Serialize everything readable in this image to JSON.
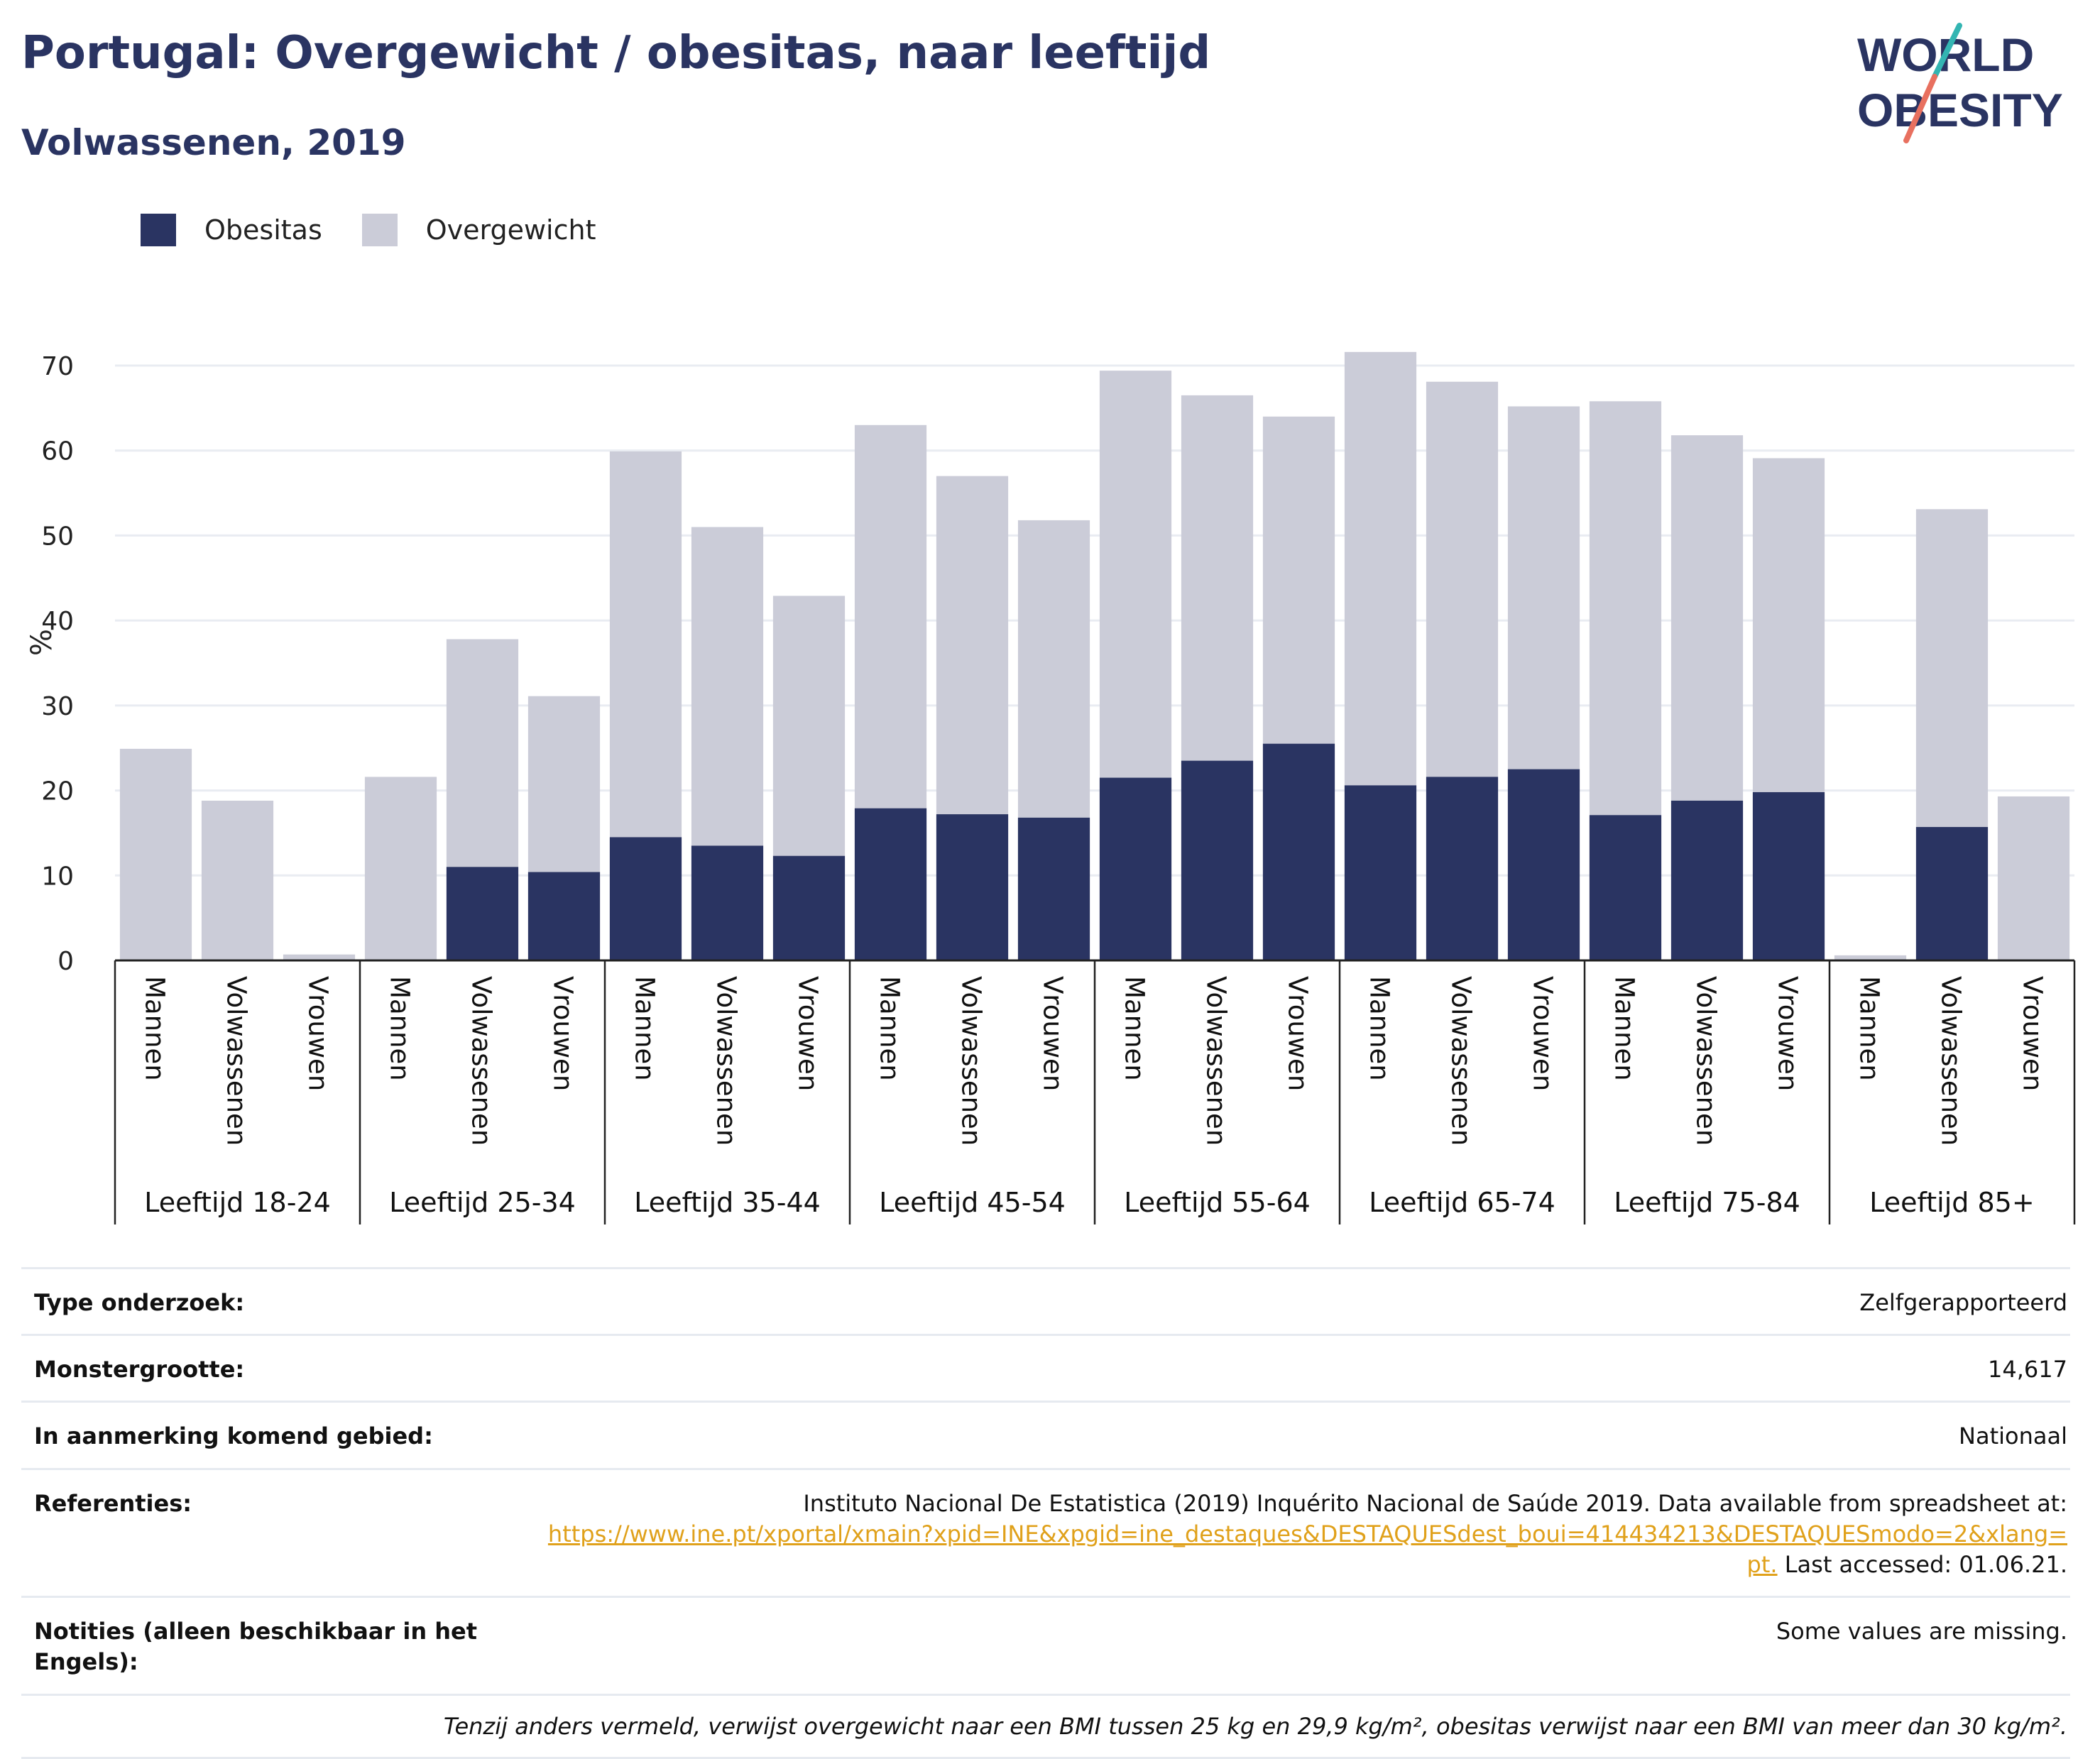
{
  "title": "Portugal: Overgewicht / obesitas, naar leeftijd",
  "subtitle": "Volwassenen, 2019",
  "logo": {
    "line1": "WORLD",
    "line2": "OBESITY",
    "slash_colors": [
      "#e8705f",
      "#33b5b2"
    ]
  },
  "colors": {
    "obesity": "#2a3462",
    "overweight": "#cbccd8",
    "title": "#2a3462",
    "link": "#e0a11b"
  },
  "legend": [
    {
      "label": "Obesitas",
      "color": "#2a3462"
    },
    {
      "label": "Overgewicht",
      "color": "#cbccd8"
    }
  ],
  "chart_data": {
    "type": "bar",
    "stacked": false,
    "overlay": true,
    "ylabel": "%",
    "ylim": [
      0,
      70
    ],
    "yticks": [
      0,
      10,
      20,
      30,
      40,
      50,
      60,
      70
    ],
    "grid": true,
    "legend_position": "top-left",
    "groups": [
      {
        "label": "Leeftijd 18-24",
        "categories": [
          "Mannen",
          "Volwassenen",
          "Vrouwen"
        ],
        "overweight": [
          24.9,
          18.8,
          0.7
        ],
        "obesity": [
          null,
          null,
          null
        ]
      },
      {
        "label": "Leeftijd 25-34",
        "categories": [
          "Mannen",
          "Volwassenen",
          "Vrouwen"
        ],
        "overweight": [
          21.6,
          37.8,
          31.1
        ],
        "obesity": [
          null,
          11.0,
          10.4
        ]
      },
      {
        "label": "Leeftijd 35-44",
        "categories": [
          "Mannen",
          "Volwassenen",
          "Vrouwen"
        ],
        "overweight": [
          59.9,
          51.0,
          42.9
        ],
        "obesity": [
          14.5,
          13.5,
          12.3
        ]
      },
      {
        "label": "Leeftijd 45-54",
        "categories": [
          "Mannen",
          "Volwassenen",
          "Vrouwen"
        ],
        "overweight": [
          63.0,
          57.0,
          51.8
        ],
        "obesity": [
          17.9,
          17.2,
          16.8
        ]
      },
      {
        "label": "Leeftijd 55-64",
        "categories": [
          "Mannen",
          "Volwassenen",
          "Vrouwen"
        ],
        "overweight": [
          69.4,
          66.5,
          64.0
        ],
        "obesity": [
          21.5,
          23.5,
          25.5
        ]
      },
      {
        "label": "Leeftijd 65-74",
        "categories": [
          "Mannen",
          "Volwassenen",
          "Vrouwen"
        ],
        "overweight": [
          71.6,
          68.1,
          65.2
        ],
        "obesity": [
          20.6,
          21.6,
          22.5
        ]
      },
      {
        "label": "Leeftijd 75-84",
        "categories": [
          "Mannen",
          "Volwassenen",
          "Vrouwen"
        ],
        "overweight": [
          65.8,
          61.8,
          59.1
        ],
        "obesity": [
          17.1,
          18.8,
          19.8
        ]
      },
      {
        "label": "Leeftijd 85+",
        "categories": [
          "Mannen",
          "Volwassenen",
          "Vrouwen"
        ],
        "overweight": [
          0.6,
          53.1,
          19.3
        ],
        "obesity": [
          null,
          15.7,
          null
        ]
      }
    ]
  },
  "info": {
    "survey_type": {
      "label": "Type onderzoek:",
      "value": "Zelfgerapporteerd"
    },
    "sample_size": {
      "label": "Monstergrootte:",
      "value": "14,617"
    },
    "area": {
      "label": "In aanmerking komend gebied:",
      "value": "Nationaal"
    },
    "references": {
      "label": "Referenties:",
      "text_before": "Instituto Nacional De Estatistica (2019) Inquérito Nacional de Saúde 2019. Data available from spreadsheet at:",
      "link_line1": "https://www.ine.pt/xportal/xmain?xpid=INE&xpgid=ine_destaques&DESTAQUESdest_boui=414434213&DESTAQUESmodo=2&xlang=",
      "link_line2": "pt.",
      "text_after": " Last accessed: 01.06.21."
    },
    "notes": {
      "label": "Notities (alleen beschikbaar in het Engels):",
      "value": "Some values are missing."
    }
  },
  "footnote": "Tenzij anders vermeld, verwijst overgewicht naar een BMI tussen 25 kg en 29,9 kg/m², obesitas verwijst naar een BMI van meer dan 30 kg/m²."
}
